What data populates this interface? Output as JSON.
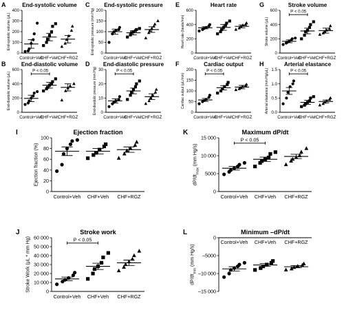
{
  "chart_data": [
    {
      "label": "A",
      "type": "scatter",
      "title": "End-systolic volume",
      "ylabel": "End-systolic volume (μL)",
      "ylim": [
        0,
        400
      ],
      "yticks": [
        0,
        100,
        200,
        300,
        400
      ],
      "ytick_labels": [
        "0",
        "100",
        "200",
        "300",
        "400"
      ],
      "categories": [
        "Control+Veh",
        "CHF+Veh",
        "CHF+RGZ"
      ],
      "groups": [
        {
          "points": [
            15,
            20,
            40,
            90,
            125,
            180,
            280
          ],
          "mean": 85,
          "sem": 40
        },
        {
          "points": [
            70,
            100,
            130,
            165,
            200,
            250,
            275
          ],
          "mean": 150,
          "sem": 35
        },
        {
          "points": [
            60,
            90,
            125,
            160,
            210,
            250
          ],
          "mean": 130,
          "sem": 35
        }
      ],
      "sig": null
    },
    {
      "label": "B",
      "type": "scatter",
      "title": "End-diastolic volume",
      "ylabel": "End-diastolic volume (μL)",
      "ylim": [
        0,
        600
      ],
      "yticks": [
        0,
        200,
        400,
        600
      ],
      "ytick_labels": [
        "0",
        "200",
        "400",
        "600"
      ],
      "categories": [
        "Control+Veh",
        "CHF+Veh",
        "CHF+RGZ"
      ],
      "groups": [
        {
          "points": [
            110,
            130,
            160,
            200,
            230,
            270,
            290
          ],
          "mean": 195,
          "sem": 45
        },
        {
          "points": [
            300,
            330,
            350,
            380,
            400,
            430,
            470
          ],
          "mean": 380,
          "sem": 40
        },
        {
          "points": [
            170,
            300,
            340,
            370,
            400
          ],
          "mean": 350,
          "sem": 50
        }
      ],
      "sig": {
        "from": 0,
        "to": 1,
        "text": "P < 0.05"
      }
    },
    {
      "label": "C",
      "type": "scatter",
      "title": "End-systolic pressure",
      "ylabel": "End-systolic pressure (mm Hg)",
      "ylim": [
        0,
        200
      ],
      "yticks": [
        0,
        50,
        100,
        150,
        200
      ],
      "ytick_labels": [
        "0",
        "50",
        "100",
        "150",
        "200"
      ],
      "categories": [
        "Control+Veh",
        "CHF+Veh",
        "CHF+RGZ"
      ],
      "groups": [
        {
          "points": [
            50,
            90,
            100,
            105,
            110,
            120
          ],
          "mean": 100,
          "sem": 12
        },
        {
          "points": [
            75,
            85,
            95,
            100,
            105,
            110,
            115
          ],
          "mean": 95,
          "sem": 10
        },
        {
          "points": [
            70,
            95,
            105,
            115,
            125,
            135,
            150
          ],
          "mean": 110,
          "sem": 13
        }
      ],
      "sig": null
    },
    {
      "label": "D",
      "type": "scatter",
      "title": "End-diastolic pressure",
      "ylabel": "End-diastolic pressure (mm Hg)",
      "ylim": [
        0,
        30
      ],
      "yticks": [
        0,
        10,
        20,
        30
      ],
      "ytick_labels": [
        "0",
        "10",
        "20",
        "30"
      ],
      "categories": [
        "Control+Veh",
        "CHF+Veh",
        "CHF+RGZ"
      ],
      "groups": [
        {
          "points": [
            4,
            6,
            7,
            8,
            9,
            11
          ],
          "mean": 8,
          "sem": 1.5
        },
        {
          "points": [
            9,
            12,
            14,
            16,
            18,
            20,
            22
          ],
          "mean": 15,
          "sem": 2
        },
        {
          "points": [
            6,
            8,
            10,
            12,
            14,
            16
          ],
          "mean": 11,
          "sem": 2
        }
      ],
      "sig": {
        "from": 0,
        "to": 1,
        "text": "P < 0.05"
      }
    },
    {
      "label": "E",
      "type": "scatter",
      "title": "Heart rate",
      "ylabel": "Heart rate (beats/min)",
      "ylim": [
        0,
        600
      ],
      "yticks": [
        0,
        200,
        400,
        600
      ],
      "ytick_labels": [
        "0",
        "200",
        "400",
        "600"
      ],
      "categories": [
        "Control+Veh",
        "CHF+Veh",
        "CHF+RGZ"
      ],
      "groups": [
        {
          "points": [
            310,
            330,
            345,
            360,
            380,
            400
          ],
          "mean": 355,
          "sem": 15
        },
        {
          "points": [
            270,
            300,
            330,
            360,
            390,
            420,
            450
          ],
          "mean": 360,
          "sem": 40
        },
        {
          "points": [
            330,
            350,
            370,
            390,
            400,
            420
          ],
          "mean": 375,
          "sem": 20
        }
      ],
      "sig": null
    },
    {
      "label": "F",
      "type": "scatter",
      "title": "Cardiac output",
      "ylabel": "Cardiac output (μL/min)",
      "ylim": [
        0,
        200
      ],
      "yticks": [
        0,
        50,
        100,
        150,
        200
      ],
      "ytick_labels": [
        "0",
        "50",
        "100",
        "150",
        "200"
      ],
      "categories": [
        "Control+Veh",
        "CHF+Veh",
        "CHF+RGZ"
      ],
      "groups": [
        {
          "points": [
            40,
            50,
            55,
            60,
            70,
            80
          ],
          "mean": 58,
          "sem": 7
        },
        {
          "points": [
            90,
            100,
            110,
            120,
            130,
            140
          ],
          "mean": 115,
          "sem": 10
        },
        {
          "points": [
            105,
            110,
            115,
            120,
            125,
            130
          ],
          "mean": 118,
          "sem": 8
        }
      ],
      "sig": {
        "from": 0,
        "to": 1,
        "text": "P < 0.05"
      }
    },
    {
      "label": "G",
      "type": "scatter",
      "title": "Stroke volume",
      "ylabel": "Stroke volume (μL)",
      "ylim": [
        0,
        600
      ],
      "yticks": [
        0,
        200,
        400,
        600
      ],
      "ytick_labels": [
        "0",
        "200",
        "400",
        "600"
      ],
      "categories": [
        "Control+Veh",
        "CHF+Veh",
        "CHF+RGZ"
      ],
      "groups": [
        {
          "points": [
            120,
            140,
            150,
            165,
            180,
            200,
            210
          ],
          "mean": 165,
          "sem": 20
        },
        {
          "points": [
            200,
            250,
            300,
            320,
            360,
            400,
            440
          ],
          "mean": 310,
          "sem": 40
        },
        {
          "points": [
            260,
            280,
            300,
            320,
            340,
            380
          ],
          "mean": 315,
          "sem": 35
        }
      ],
      "sig": {
        "from": 0,
        "to": 1,
        "text": "P < 0.05"
      }
    },
    {
      "label": "H",
      "type": "scatter",
      "title": "Arterial elastance",
      "ylabel": "Arterial elastance (mm Hg/μL)",
      "ylim": [
        0,
        1.5
      ],
      "yticks": [
        0,
        0.5,
        1.0,
        1.5
      ],
      "ytick_labels": [
        "0.0",
        "0.5",
        "1.0",
        "1.5"
      ],
      "categories": [
        "Control+Veh",
        "CHF+Veh",
        "CHF+RGZ"
      ],
      "groups": [
        {
          "points": [
            0.3,
            0.5,
            0.7,
            0.9,
            1.0,
            1.1
          ],
          "mean": 0.75,
          "sem": 0.12
        },
        {
          "points": [
            0.2,
            0.25,
            0.3,
            0.35,
            0.4,
            0.5,
            0.55
          ],
          "mean": 0.35,
          "sem": 0.07
        },
        {
          "points": [
            0.25,
            0.3,
            0.35,
            0.4,
            0.45,
            0.5
          ],
          "mean": 0.38,
          "sem": 0.05
        }
      ],
      "sig": {
        "from": 0,
        "to": 1,
        "text": "P < 0.05"
      }
    },
    {
      "label": "I",
      "type": "scatter",
      "title": "Ejection fraction",
      "ylabel": "Ejection fraction (%)",
      "ylim": [
        0,
        100
      ],
      "yticks": [
        0,
        20,
        40,
        60,
        80,
        100
      ],
      "ytick_labels": [
        "0",
        "20",
        "40",
        "60",
        "80",
        "100"
      ],
      "categories": [
        "Control+Veh",
        "CHF+Veh",
        "CHF+RGZ"
      ],
      "groups": [
        {
          "points": [
            38,
            50,
            70,
            80,
            88,
            94,
            96
          ],
          "mean": 75,
          "sem": 8
        },
        {
          "points": [
            62,
            68,
            72,
            78,
            84,
            88
          ],
          "mean": 75,
          "sem": 5
        },
        {
          "points": [
            62,
            70,
            76,
            80,
            86,
            92
          ],
          "mean": 78,
          "sem": 5
        }
      ],
      "sig": null
    },
    {
      "label": "J",
      "type": "scatter",
      "title": "Stroke work",
      "ylabel": "Stroke Work (μL * mm Hg)",
      "ylim": [
        0,
        60000
      ],
      "yticks": [
        0,
        10000,
        20000,
        30000,
        40000,
        50000,
        60000
      ],
      "ytick_labels": [
        "0",
        "10 000",
        "20 000",
        "30 000",
        "40 000",
        "50 000",
        "60 000"
      ],
      "categories": [
        "Control+Veh",
        "CHF+Veh",
        "CHF+RGZ"
      ],
      "groups": [
        {
          "points": [
            8000,
            11000,
            13000,
            15000,
            18000,
            21000
          ],
          "mean": 14000,
          "sem": 2000
        },
        {
          "points": [
            14000,
            20000,
            25000,
            28000,
            32000,
            38000,
            43000
          ],
          "mean": 28000,
          "sem": 3500
        },
        {
          "points": [
            23000,
            27000,
            30000,
            33000,
            36000,
            40000,
            45000
          ],
          "mean": 32000,
          "sem": 3000
        }
      ],
      "sig": {
        "from": 0,
        "to": 1,
        "text": "P < 0.05"
      }
    },
    {
      "label": "K",
      "type": "scatter",
      "title": "Maximum dP/dt",
      "ylabel": "dP/dt",
      "ylabel_sub": "max",
      "ylabel_unit": " (mm Hg/s)",
      "ylim": [
        0,
        15000
      ],
      "yticks": [
        0,
        5000,
        10000,
        15000
      ],
      "ytick_labels": [
        "0",
        "5000",
        "10 000",
        "15 000"
      ],
      "categories": [
        "Control+Veh",
        "CHF+Veh",
        "CHF+RGZ"
      ],
      "groups": [
        {
          "points": [
            4800,
            5500,
            6000,
            6500,
            7000,
            7500,
            8000
          ],
          "mean": 6500,
          "sem": 500
        },
        {
          "points": [
            7000,
            8000,
            8500,
            9000,
            9500,
            10500,
            11000
          ],
          "mean": 9000,
          "sem": 600
        },
        {
          "points": [
            7500,
            8500,
            9000,
            9500,
            10000,
            11000,
            12000
          ],
          "mean": 9800,
          "sem": 600
        }
      ],
      "sig": {
        "from": 0,
        "to": 1,
        "text": "P < 0.05"
      }
    },
    {
      "label": "L",
      "type": "scatter",
      "title": "Minimum –dP/dt",
      "ylabel": "dP/dt",
      "ylabel_sub": "min",
      "ylabel_unit": " (mm Hg/s)",
      "ylim": [
        -15000,
        0
      ],
      "yticks": [
        0,
        -5000,
        -10000,
        -15000
      ],
      "ytick_labels": [
        "0",
        "–5000",
        "–10 000",
        "–15 000"
      ],
      "categories": [
        "Control+Veh",
        "CHF+Veh",
        "CHF+RGZ"
      ],
      "categories_on_top": true,
      "groups": [
        {
          "points": [
            -11000,
            -10000,
            -9000,
            -8500,
            -8000,
            -7500,
            -7000
          ],
          "mean": -8700,
          "sem": 600
        },
        {
          "points": [
            -9000,
            -8500,
            -8000,
            -7500,
            -7000,
            -6500
          ],
          "mean": -7600,
          "sem": 400
        },
        {
          "points": [
            -9000,
            -8700,
            -8300,
            -8000,
            -7700,
            -7300
          ],
          "mean": -8100,
          "sem": 300
        }
      ],
      "sig": null
    }
  ]
}
